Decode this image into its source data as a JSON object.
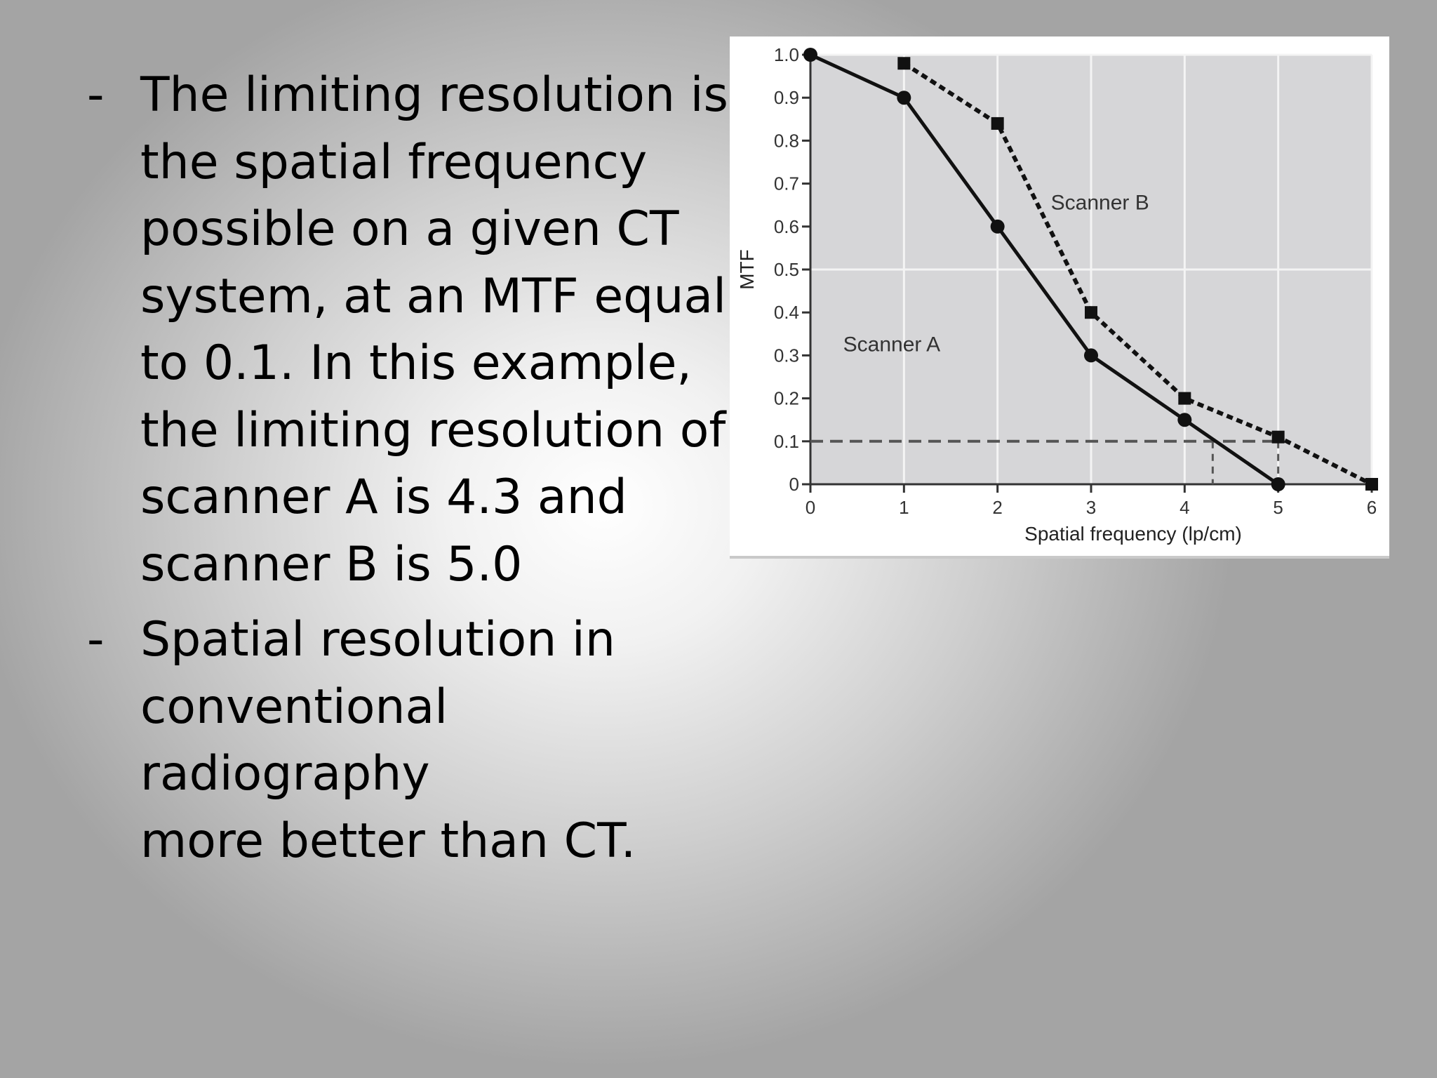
{
  "bullets": [
    {
      "marker": "-",
      "lines": [
        "The limiting resolution is",
        "the spatial frequency",
        "possible on a given CT",
        "system, at an MTF equal",
        "to 0.1. In this example,",
        "the limiting resolution of",
        "scanner A is 4.3 and",
        "scanner B is 5.0"
      ]
    },
    {
      "marker": "-",
      "lines": [
        "Spatial resolution in",
        "conventional radiography",
        "more better than CT."
      ]
    }
  ],
  "chart_data": {
    "type": "line",
    "xlabel": "Spatial frequency (lp/cm)",
    "ylabel": "MTF",
    "xlim": [
      0,
      6
    ],
    "ylim": [
      0,
      1.0
    ],
    "x_ticks": [
      "0",
      "1",
      "2",
      "3",
      "4",
      "5",
      "6"
    ],
    "y_ticks": [
      "0",
      "0.1",
      "0.2",
      "0.3",
      "0.4",
      "0.5",
      "0.6",
      "0.7",
      "0.8",
      "0.9",
      "1.0"
    ],
    "grid": true,
    "series": [
      {
        "name": "Scanner A",
        "marker": "circle",
        "line_style": "solid",
        "x": [
          0,
          1,
          2,
          3,
          4,
          5
        ],
        "y": [
          1.0,
          0.9,
          0.6,
          0.3,
          0.15,
          0.0
        ]
      },
      {
        "name": "Scanner B",
        "marker": "square",
        "line_style": "dashed",
        "x": [
          1,
          2,
          3,
          4,
          5,
          6
        ],
        "y": [
          0.98,
          0.84,
          0.4,
          0.2,
          0.11,
          0.0
        ]
      }
    ],
    "reference_line": {
      "y": 0.1
    },
    "limiting_resolution_markers": [
      4.3,
      5.0
    ],
    "colors": {
      "plot_background": "#d6d6d8",
      "grid": "#f4f4f4",
      "line": "#111111"
    }
  }
}
